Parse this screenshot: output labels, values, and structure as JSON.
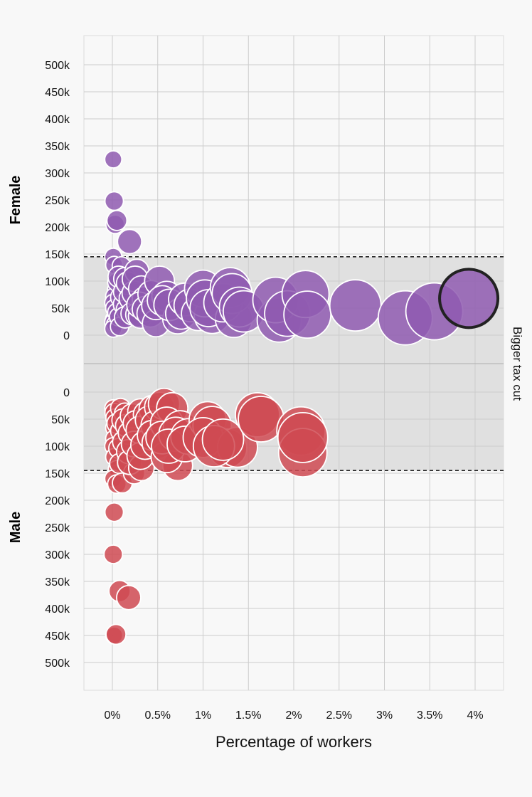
{
  "chart_data": {
    "type": "scatter",
    "subtype": "bubble",
    "xlabel": "Percentage of workers",
    "x_ticks": [
      "0%",
      "0.5%",
      "1%",
      "1.5%",
      "2%",
      "2.5%",
      "3%",
      "3.5%",
      "4%"
    ],
    "x_tick_values": [
      0,
      0.5,
      1,
      1.5,
      2,
      2.5,
      3,
      3.5,
      4
    ],
    "xlim": [
      -0.3,
      4.2
    ],
    "y_ticks": [
      "0",
      "50k",
      "100k",
      "150k",
      "200k",
      "250k",
      "300k",
      "350k",
      "400k",
      "450k",
      "500k"
    ],
    "y_tick_values": [
      0,
      50000,
      100000,
      150000,
      200000,
      250000,
      300000,
      350000,
      400000,
      450000,
      500000
    ],
    "grid": true,
    "threshold": 145000,
    "band_label": "Bigger tax cut",
    "colors": {
      "female": "#8f5bb0",
      "male": "#cf4a52",
      "band": "#e0e0e0",
      "highlight_stroke": "#222222"
    },
    "series": [
      {
        "name": "Female",
        "points": [
          [
            0.01,
            325000
          ],
          [
            0.02,
            248000
          ],
          [
            0.05,
            212000
          ],
          [
            0.03,
            205000
          ],
          [
            0.19,
            173000
          ],
          [
            0.01,
            145000
          ],
          [
            0.02,
            130000
          ],
          [
            0.1,
            128000
          ],
          [
            0.27,
            118000
          ],
          [
            0.07,
            108000
          ],
          [
            0.14,
            104000
          ],
          [
            0.25,
            104000
          ],
          [
            0.52,
            100000
          ],
          [
            0.05,
            98000
          ],
          [
            0.17,
            96000
          ],
          [
            0.32,
            86000
          ],
          [
            0.04,
            84000
          ],
          [
            0.13,
            80000
          ],
          [
            0.24,
            78000
          ],
          [
            0.43,
            76000
          ],
          [
            0.6,
            72000
          ],
          [
            0.02,
            72000
          ],
          [
            0.09,
            70000
          ],
          [
            0.2,
            68000
          ],
          [
            0.36,
            66000
          ],
          [
            0.55,
            64000
          ],
          [
            0.8,
            66000
          ],
          [
            0.01,
            60000
          ],
          [
            0.12,
            57000
          ],
          [
            0.3,
            56000
          ],
          [
            0.48,
            55000
          ],
          [
            0.63,
            56000
          ],
          [
            0.02,
            50000
          ],
          [
            0.16,
            47000
          ],
          [
            0.36,
            48000
          ],
          [
            0.05,
            42000
          ],
          [
            0.22,
            40000
          ],
          [
            0.42,
            40000
          ],
          [
            0.28,
            38000
          ],
          [
            0.07,
            34000
          ],
          [
            0.14,
            33000
          ],
          [
            0.02,
            30000
          ],
          [
            0.31,
            35000
          ],
          [
            0.01,
            24000
          ],
          [
            0.03,
            20000
          ],
          [
            0.08,
            16000
          ],
          [
            0.01,
            12000
          ],
          [
            0.48,
            22000
          ],
          [
            0.72,
            30000
          ],
          [
            0.76,
            40000
          ],
          [
            0.95,
            40000
          ],
          [
            0.86,
            55000
          ],
          [
            1.0,
            86000
          ],
          [
            1.02,
            68000
          ],
          [
            1.06,
            50000
          ],
          [
            1.1,
            36000
          ],
          [
            1.22,
            60000
          ],
          [
            1.3,
            88000
          ],
          [
            1.32,
            77000
          ],
          [
            1.34,
            30000
          ],
          [
            1.4,
            52000
          ],
          [
            1.45,
            44000
          ],
          [
            1.8,
            65000
          ],
          [
            1.84,
            28000
          ],
          [
            1.93,
            40000
          ],
          [
            2.13,
            76000
          ],
          [
            2.15,
            38000
          ],
          [
            2.68,
            55000
          ],
          [
            3.23,
            32000
          ],
          [
            3.55,
            44000
          ],
          [
            3.93,
            68000
          ]
        ],
        "sizes": [
          0.3,
          0.35,
          0.4,
          0.35,
          0.55,
          0.3,
          0.3,
          0.35,
          0.55,
          0.45,
          0.5,
          0.6,
          0.75,
          0.35,
          0.5,
          0.6,
          0.3,
          0.45,
          0.55,
          0.65,
          0.75,
          0.3,
          0.4,
          0.5,
          0.6,
          0.75,
          0.85,
          0.3,
          0.4,
          0.6,
          0.7,
          0.8,
          0.3,
          0.45,
          0.6,
          0.35,
          0.5,
          0.65,
          0.55,
          0.35,
          0.45,
          0.3,
          0.55,
          0.3,
          0.3,
          0.35,
          0.3,
          0.65,
          0.75,
          0.8,
          0.9,
          0.85,
          1.0,
          1.0,
          1.0,
          0.95,
          1.05,
          1.1,
          1.1,
          1.0,
          1.1,
          1.15,
          1.3,
          1.25,
          1.3,
          1.35,
          1.35,
          1.5,
          1.6,
          1.7,
          1.75
        ],
        "highlight_index": 70
      },
      {
        "name": "Male",
        "points": [
          [
            0.01,
            30000
          ],
          [
            0.02,
            38000
          ],
          [
            0.09,
            30000
          ],
          [
            0.14,
            40000
          ],
          [
            0.03,
            48000
          ],
          [
            0.12,
            52000
          ],
          [
            0.22,
            44000
          ],
          [
            0.31,
            36000
          ],
          [
            0.38,
            42000
          ],
          [
            0.45,
            32000
          ],
          [
            0.52,
            28000
          ],
          [
            0.57,
            22000
          ],
          [
            0.66,
            30000
          ],
          [
            0.05,
            58000
          ],
          [
            0.16,
            62000
          ],
          [
            0.26,
            58000
          ],
          [
            0.41,
            52000
          ],
          [
            0.48,
            62000
          ],
          [
            0.6,
            58000
          ],
          [
            0.75,
            66000
          ],
          [
            0.02,
            66000
          ],
          [
            0.09,
            72000
          ],
          [
            0.19,
            76000
          ],
          [
            0.3,
            70000
          ],
          [
            0.44,
            80000
          ],
          [
            0.55,
            84000
          ],
          [
            0.7,
            78000
          ],
          [
            0.84,
            82000
          ],
          [
            0.02,
            86000
          ],
          [
            0.12,
            92000
          ],
          [
            0.24,
            96000
          ],
          [
            0.36,
            98000
          ],
          [
            0.5,
            94000
          ],
          [
            0.62,
            100000
          ],
          [
            0.8,
            96000
          ],
          [
            0.01,
            100000
          ],
          [
            0.07,
            104000
          ],
          [
            0.18,
            110000
          ],
          [
            0.31,
            118000
          ],
          [
            0.6,
            120000
          ],
          [
            0.02,
            120000
          ],
          [
            0.08,
            132000
          ],
          [
            0.19,
            130000
          ],
          [
            0.32,
            140000
          ],
          [
            0.05,
            142000
          ],
          [
            0.24,
            150000
          ],
          [
            0.72,
            136000
          ],
          [
            0.01,
            160000
          ],
          [
            0.05,
            170000
          ],
          [
            0.11,
            168000
          ],
          [
            1.05,
            52000
          ],
          [
            1.1,
            62000
          ],
          [
            1.0,
            84000
          ],
          [
            1.12,
            100000
          ],
          [
            1.22,
            88000
          ],
          [
            1.27,
            104000
          ],
          [
            1.38,
            102000
          ],
          [
            1.6,
            42000
          ],
          [
            1.64,
            50000
          ],
          [
            2.08,
            72000
          ],
          [
            2.1,
            84000
          ],
          [
            2.1,
            112000
          ],
          [
            0.02,
            222000
          ],
          [
            0.01,
            300000
          ],
          [
            0.08,
            368000
          ],
          [
            0.18,
            380000
          ],
          [
            0.04,
            448000
          ],
          [
            0.02,
            450000
          ]
        ],
        "sizes": [
          0.3,
          0.35,
          0.4,
          0.45,
          0.35,
          0.5,
          0.55,
          0.6,
          0.65,
          0.7,
          0.75,
          0.8,
          0.8,
          0.4,
          0.5,
          0.6,
          0.7,
          0.75,
          0.85,
          0.9,
          0.3,
          0.4,
          0.5,
          0.65,
          0.75,
          0.85,
          0.9,
          0.95,
          0.3,
          0.45,
          0.6,
          0.7,
          0.8,
          0.9,
          0.95,
          0.3,
          0.4,
          0.55,
          0.65,
          0.8,
          0.3,
          0.4,
          0.55,
          0.6,
          0.3,
          0.45,
          0.75,
          0.3,
          0.35,
          0.4,
          1.0,
          1.05,
          1.1,
          1.15,
          1.15,
          1.05,
          1.1,
          1.25,
          1.3,
          1.4,
          1.45,
          1.4,
          0.35,
          0.35,
          0.45,
          0.55,
          0.4,
          0.3
        ]
      }
    ],
    "group_labels": [
      "Female",
      "Male"
    ]
  }
}
